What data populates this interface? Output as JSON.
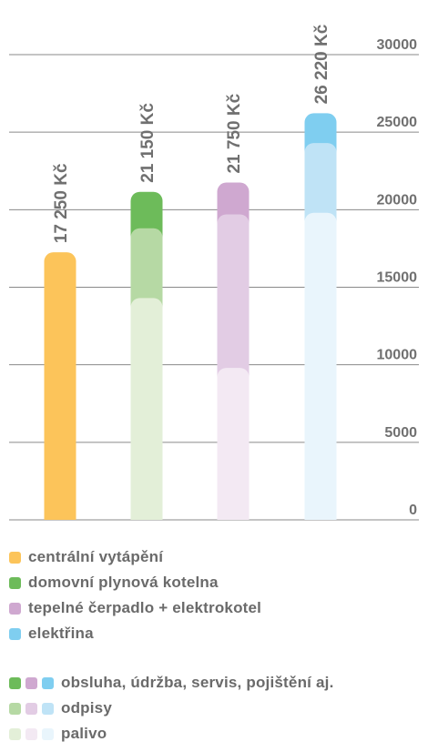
{
  "chart_data": {
    "type": "bar",
    "stacked": true,
    "categories": [
      "centrální vytápění",
      "domovní plynová kotelna",
      "tepelné čerpadlo + elektrokotel",
      "elektřina"
    ],
    "totals": [
      "17 250 Kč",
      "21 150 Kč",
      "21 750 Kč",
      "26 220 Kč"
    ],
    "series": [
      {
        "name": "palivo",
        "values": [
          17250,
          14300,
          9800,
          19800
        ]
      },
      {
        "name": "odpisy",
        "values": [
          0,
          4500,
          9900,
          4500
        ]
      },
      {
        "name": "obsluha, údržba, servis, pojištění aj.",
        "values": [
          0,
          2350,
          2050,
          1920
        ]
      }
    ],
    "ylim": [
      0,
      30000
    ],
    "yticks": [
      "0",
      "5000",
      "10000",
      "15000",
      "20000",
      "25000",
      "30000"
    ],
    "grid": true,
    "colors": {
      "centrální vytápění": [
        "#fcc45a"
      ],
      "domovní plynová kotelna": [
        "#e3efd8",
        "#b6d9a4",
        "#6dbb5a"
      ],
      "tepelné čerpadlo + elektrokotel": [
        "#f3e9f3",
        "#e2cce4",
        "#cfa8d0"
      ],
      "elektřina": [
        "#e9f5fc",
        "#bfe3f6",
        "#7fcef0"
      ]
    }
  },
  "legend": {
    "categories": [
      {
        "label": "centrální vytápění",
        "color": "#fcc45a"
      },
      {
        "label": "domovní plynová kotelna",
        "color": "#6dbb5a"
      },
      {
        "label": "tepelné čerpadlo + elektrokotel",
        "color": "#cfa8d0"
      },
      {
        "label": "elektřina",
        "color": "#7fcef0"
      }
    ],
    "components": [
      {
        "label": "obsluha, údržba, servis, pojištění aj.",
        "colors": [
          "#6dbb5a",
          "#cfa8d0",
          "#7fcef0"
        ]
      },
      {
        "label": "odpisy",
        "colors": [
          "#b6d9a4",
          "#e2cce4",
          "#bfe3f6"
        ]
      },
      {
        "label": "palivo",
        "colors": [
          "#e3efd8",
          "#f3e9f3",
          "#e9f5fc"
        ]
      }
    ]
  }
}
